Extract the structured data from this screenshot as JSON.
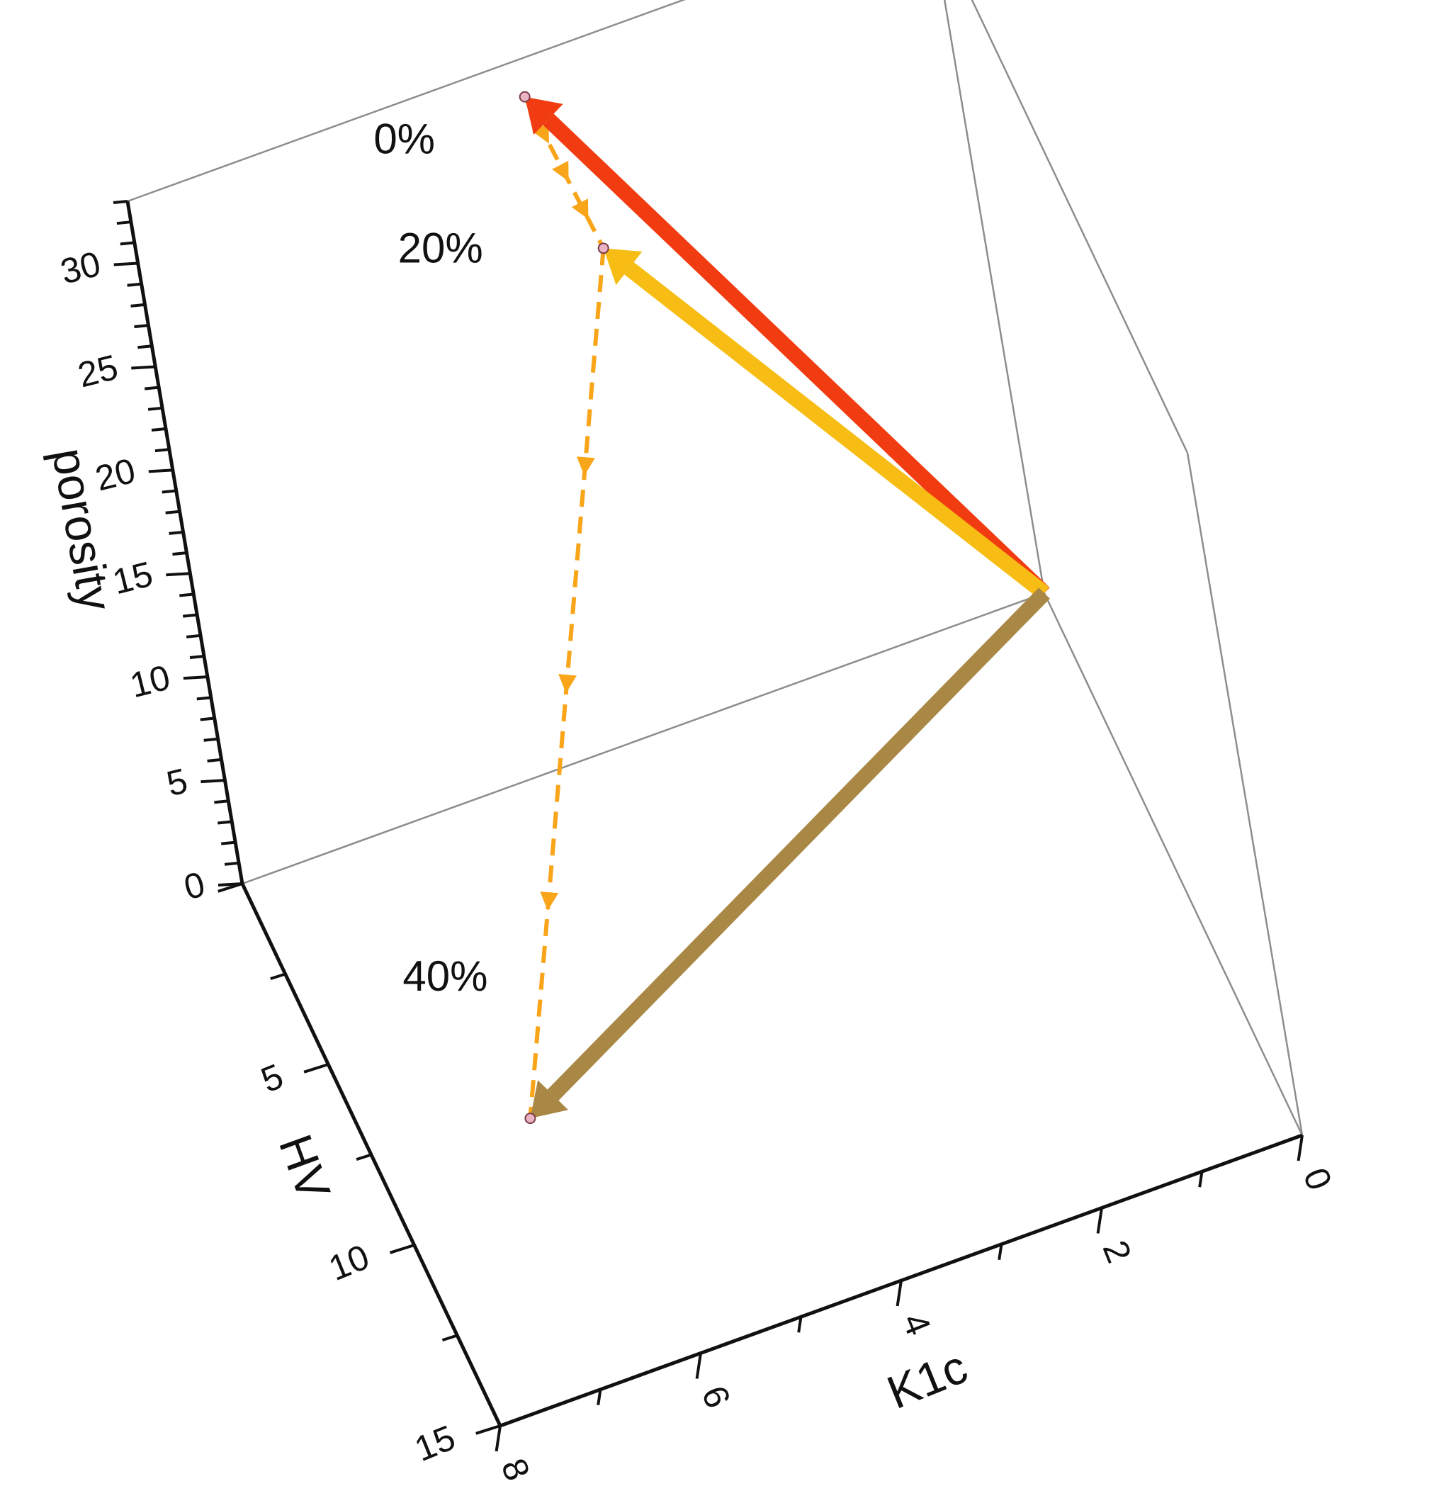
{
  "chart_data": {
    "type": "3d-line",
    "title": "",
    "axes": {
      "x": {
        "label": "K1c",
        "range": [
          0,
          8
        ],
        "ticks": [
          "0",
          "2",
          "4",
          "6",
          "8"
        ]
      },
      "y": {
        "label": "HV",
        "range": [
          0,
          15
        ],
        "ticks": [
          "5",
          "10",
          "15"
        ]
      },
      "z": {
        "label": "porosity",
        "range": [
          0,
          33
        ],
        "ticks": [
          "0",
          "5",
          "10",
          "15",
          "20",
          "25",
          "30"
        ]
      }
    },
    "points": [
      {
        "label": "0%",
        "K1c": 4.1,
        "HV": 0,
        "porosity": 31.2
      },
      {
        "label": "20%",
        "K1c": 3.6,
        "HV": 0,
        "porosity": 23.0
      },
      {
        "label": "40%",
        "K1c": 6.5,
        "HV": 8.0,
        "porosity": 0
      }
    ],
    "vectors": [
      {
        "to": "0%",
        "color": "#f03c10",
        "width": 22
      },
      {
        "to": "20%",
        "color": "#f7bd14",
        "width": 22
      },
      {
        "to": "40%",
        "color": "#a98744",
        "width": 22
      }
    ],
    "path": {
      "style": "dashed",
      "color": "#f9a51a",
      "order": [
        "0%",
        "20%",
        "40%"
      ]
    }
  }
}
